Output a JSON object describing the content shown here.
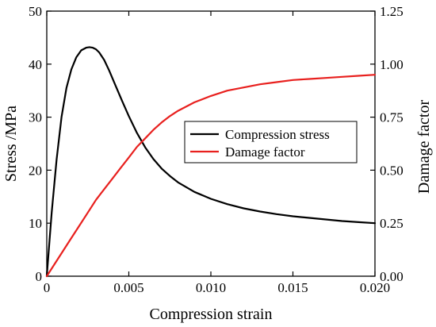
{
  "chart_data": {
    "type": "line",
    "xlabel": "Compression strain",
    "ylabel": "Stress /MPa",
    "y2label": "Damage factor",
    "xlim": [
      0,
      0.02
    ],
    "ylim": [
      0,
      50
    ],
    "y2lim": [
      0,
      1.25
    ],
    "xticks": [
      "0",
      "0.005",
      "0.010",
      "0.015",
      "0.020"
    ],
    "yticks": [
      "0",
      "10",
      "20",
      "30",
      "40",
      "50"
    ],
    "y2ticks": [
      "0.00",
      "0.25",
      "0.50",
      "0.75",
      "1.00",
      "1.25"
    ],
    "grid": false,
    "legend_position": "center-right",
    "series": [
      {
        "name": "Compression stress",
        "axis": "left",
        "color": "#000000",
        "x": [
          0,
          0.0003,
          0.0006,
          0.0009,
          0.0012,
          0.0015,
          0.0018,
          0.0021,
          0.0024,
          0.0026,
          0.0028,
          0.003,
          0.0032,
          0.0035,
          0.0038,
          0.0042,
          0.0046,
          0.005,
          0.0055,
          0.006,
          0.0065,
          0.007,
          0.0075,
          0.008,
          0.009,
          0.01,
          0.011,
          0.012,
          0.013,
          0.014,
          0.015,
          0.016,
          0.017,
          0.018,
          0.019,
          0.02
        ],
        "y": [
          0,
          12,
          22,
          30,
          35.5,
          39,
          41.3,
          42.6,
          43.1,
          43.2,
          43.1,
          42.8,
          42.2,
          40.8,
          38.8,
          35.9,
          33,
          30.2,
          27,
          24.3,
          22.1,
          20.3,
          18.9,
          17.7,
          15.9,
          14.6,
          13.6,
          12.8,
          12.2,
          11.7,
          11.3,
          11,
          10.7,
          10.4,
          10.2,
          10
        ]
      },
      {
        "name": "Damage factor",
        "axis": "right",
        "color": "#e8201e",
        "x": [
          0,
          0.0005,
          0.001,
          0.0015,
          0.002,
          0.0025,
          0.003,
          0.0035,
          0.004,
          0.0045,
          0.005,
          0.0055,
          0.006,
          0.0065,
          0.007,
          0.0075,
          0.008,
          0.009,
          0.01,
          0.011,
          0.012,
          0.013,
          0.014,
          0.015,
          0.016,
          0.017,
          0.018,
          0.019,
          0.02
        ],
        "y": [
          0,
          0.06,
          0.12,
          0.18,
          0.24,
          0.3,
          0.36,
          0.41,
          0.46,
          0.51,
          0.56,
          0.61,
          0.65,
          0.69,
          0.725,
          0.755,
          0.78,
          0.82,
          0.85,
          0.875,
          0.89,
          0.905,
          0.915,
          0.925,
          0.93,
          0.935,
          0.94,
          0.945,
          0.95
        ]
      }
    ]
  }
}
